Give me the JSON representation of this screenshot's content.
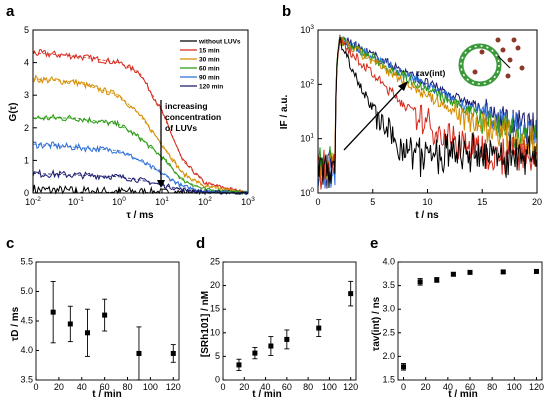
{
  "panels": {
    "a": {
      "letter": "a",
      "ylabel": "G(τ)",
      "xlabel": "τ / ms",
      "annotation": [
        "increasing",
        "concentration",
        "of LUVs"
      ],
      "legend": [
        {
          "label": "without LUVs",
          "color": "#000000"
        },
        {
          "label": "15 min",
          "color": "#d62a1e"
        },
        {
          "label": "30 min",
          "color": "#d48c00"
        },
        {
          "label": "60 min",
          "color": "#2a9a12"
        },
        {
          "label": "90 min",
          "color": "#2f6fd8"
        },
        {
          "label": "120 min",
          "color": "#1a1a6e"
        }
      ],
      "x_ticks": [
        "10^-2",
        "10^-1",
        "10^0",
        "10^1",
        "10^2",
        "10^3"
      ],
      "y_ticks": [
        "0",
        "1",
        "2",
        "3",
        "4",
        "5"
      ]
    },
    "b": {
      "letter": "b",
      "ylabel": "IF / a.u.",
      "xlabel": "t / ns",
      "annotation": "τav(int)",
      "x_ticks": [
        "0",
        "5",
        "10",
        "15",
        "20"
      ],
      "y_ticks": [
        "10^0",
        "10^1",
        "10^2",
        "10^3"
      ]
    },
    "c": {
      "letter": "c",
      "ylabel": "τD / ms",
      "xlabel": "t / min",
      "x_ticks": [
        "0",
        "20",
        "40",
        "60",
        "80",
        "100",
        "120"
      ],
      "y_ticks": [
        "3.5",
        "4.0",
        "4.5",
        "5.0",
        "5.5"
      ]
    },
    "d": {
      "letter": "d",
      "ylabel": "[SRh101] / nM",
      "xlabel": "t / min",
      "x_ticks": [
        "0",
        "20",
        "40",
        "60",
        "80",
        "100",
        "120"
      ],
      "y_ticks": [
        "0",
        "5",
        "10",
        "15",
        "20",
        "25"
      ]
    },
    "e": {
      "letter": "e",
      "ylabel": "τav(int) / ns",
      "xlabel": "t / min",
      "x_ticks": [
        "0",
        "20",
        "40",
        "60",
        "80",
        "100",
        "120"
      ],
      "y_ticks": [
        "1.5",
        "2.0",
        "2.5",
        "3.0",
        "3.5",
        "4.0"
      ]
    }
  },
  "chart_data": [
    {
      "panel": "a",
      "type": "line",
      "xlabel": "τ / ms",
      "ylabel": "G(τ)",
      "x_scale": "log",
      "xlim": [
        0.01,
        1000
      ],
      "ylim": [
        0,
        5
      ],
      "grid": false,
      "legend_position": "top-right",
      "series": [
        {
          "name": "without LUVs",
          "color": "#000000",
          "x": [
            0.01,
            0.1,
            1,
            10,
            100,
            1000
          ],
          "y": [
            0.1,
            0.05,
            0.05,
            0.03,
            0.01,
            0.0
          ]
        },
        {
          "name": "15 min",
          "color": "#d62a1e",
          "x": [
            0.01,
            0.1,
            1,
            3,
            10,
            30,
            100,
            1000
          ],
          "y": [
            4.3,
            4.2,
            4.0,
            3.7,
            2.5,
            1.0,
            0.3,
            0.0
          ]
        },
        {
          "name": "30 min",
          "color": "#d48c00",
          "x": [
            0.01,
            0.1,
            1,
            3,
            10,
            30,
            100,
            1000
          ],
          "y": [
            3.5,
            3.4,
            3.0,
            2.4,
            1.5,
            0.6,
            0.2,
            0.0
          ]
        },
        {
          "name": "60 min",
          "color": "#2a9a12",
          "x": [
            0.01,
            0.1,
            1,
            3,
            10,
            30,
            100,
            1000
          ],
          "y": [
            2.3,
            2.3,
            2.1,
            1.7,
            1.1,
            0.4,
            0.1,
            0.0
          ]
        },
        {
          "name": "90 min",
          "color": "#2f6fd8",
          "x": [
            0.01,
            0.1,
            1,
            3,
            10,
            30,
            100,
            1000
          ],
          "y": [
            1.5,
            1.4,
            1.3,
            1.0,
            0.6,
            0.2,
            0.05,
            0.0
          ]
        },
        {
          "name": "120 min",
          "color": "#1a1a6e",
          "x": [
            0.01,
            0.1,
            1,
            3,
            10,
            30,
            100,
            1000
          ],
          "y": [
            0.6,
            0.55,
            0.5,
            0.4,
            0.25,
            0.1,
            0.02,
            0.0
          ]
        }
      ]
    },
    {
      "panel": "b",
      "type": "line",
      "xlabel": "t / ns",
      "ylabel": "IF / a.u.",
      "y_scale": "log",
      "xlim": [
        0,
        20
      ],
      "ylim": [
        1,
        1000
      ],
      "series": [
        {
          "color": "#000000",
          "decay_ns": 1.0
        },
        {
          "color": "#d62a1e",
          "decay_ns": 2.1
        },
        {
          "color": "#d48c00",
          "decay_ns": 3.3
        },
        {
          "color": "#2a9a12",
          "decay_ns": 3.7
        },
        {
          "color": "#2f6fd8",
          "decay_ns": 3.9
        },
        {
          "color": "#1a1a6e",
          "decay_ns": 4.1
        }
      ]
    },
    {
      "panel": "c",
      "type": "scatter",
      "xlabel": "t / min",
      "ylabel": "τD / ms",
      "xlim": [
        0,
        125
      ],
      "ylim": [
        3.5,
        5.5
      ],
      "x": [
        15,
        30,
        45,
        60,
        90,
        120
      ],
      "y": [
        4.65,
        4.45,
        4.3,
        4.6,
        3.95,
        3.95
      ],
      "error": [
        0.52,
        0.3,
        0.4,
        0.27,
        0.45,
        0.15
      ]
    },
    {
      "panel": "d",
      "type": "scatter",
      "xlabel": "t / min",
      "ylabel": "[SRh101] / nM",
      "xlim": [
        0,
        125
      ],
      "ylim": [
        0,
        25
      ],
      "x": [
        15,
        30,
        45,
        60,
        90,
        120
      ],
      "y": [
        3.2,
        5.7,
        7.2,
        8.6,
        11.0,
        18.3
      ],
      "error": [
        1.2,
        1.2,
        2.0,
        2.0,
        1.8,
        2.6
      ]
    },
    {
      "panel": "e",
      "type": "scatter",
      "xlabel": "t / min",
      "ylabel": "τav(int) / ns",
      "xlim": [
        -5,
        125
      ],
      "ylim": [
        1.5,
        4.0
      ],
      "x": [
        0,
        15,
        30,
        45,
        60,
        90,
        120
      ],
      "y": [
        1.78,
        3.58,
        3.62,
        3.74,
        3.78,
        3.79,
        3.8
      ],
      "error": [
        0.07,
        0.07,
        0.05,
        0.03,
        0.03,
        0.03,
        0.03
      ]
    }
  ]
}
